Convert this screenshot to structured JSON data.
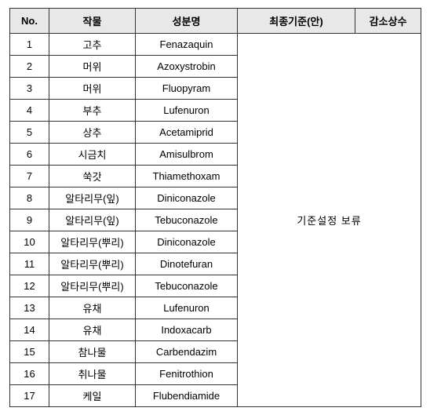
{
  "headers": {
    "no": "No.",
    "crop": "작물",
    "ingredient": "성분명",
    "standard": "최종기준(안)",
    "reduce": "감소상수"
  },
  "merged_text": "기준설정 보류",
  "rows": [
    {
      "no": "1",
      "crop": "고추",
      "ingredient": "Fenazaquin"
    },
    {
      "no": "2",
      "crop": "머위",
      "ingredient": "Azoxystrobin"
    },
    {
      "no": "3",
      "crop": "머위",
      "ingredient": "Fluopyram"
    },
    {
      "no": "4",
      "crop": "부추",
      "ingredient": "Lufenuron"
    },
    {
      "no": "5",
      "crop": "상추",
      "ingredient": "Acetamiprid"
    },
    {
      "no": "6",
      "crop": "시금치",
      "ingredient": "Amisulbrom"
    },
    {
      "no": "7",
      "crop": "쑥갓",
      "ingredient": "Thiamethoxam"
    },
    {
      "no": "8",
      "crop": "알타리무(잎)",
      "ingredient": "Diniconazole"
    },
    {
      "no": "9",
      "crop": "알타리무(잎)",
      "ingredient": "Tebuconazole"
    },
    {
      "no": "10",
      "crop": "알타리무(뿌리)",
      "ingredient": "Diniconazole"
    },
    {
      "no": "11",
      "crop": "알타리무(뿌리)",
      "ingredient": "Dinotefuran"
    },
    {
      "no": "12",
      "crop": "알타리무(뿌리)",
      "ingredient": "Tebuconazole"
    },
    {
      "no": "13",
      "crop": "유채",
      "ingredient": "Lufenuron"
    },
    {
      "no": "14",
      "crop": "유채",
      "ingredient": "Indoxacarb"
    },
    {
      "no": "15",
      "crop": "참나물",
      "ingredient": "Carbendazim"
    },
    {
      "no": "16",
      "crop": "취나물",
      "ingredient": "Fenitrothion"
    },
    {
      "no": "17",
      "crop": "케일",
      "ingredient": "Flubendiamide"
    }
  ]
}
